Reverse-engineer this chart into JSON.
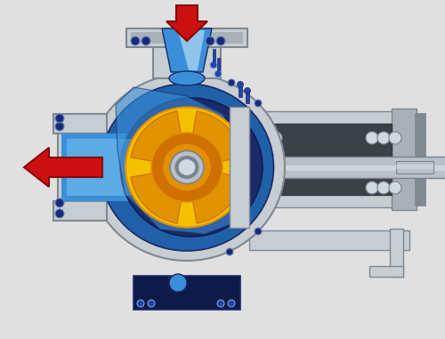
{
  "bg_color": "#e0e0e0",
  "casing_outer": "#aab0b8",
  "casing_mid": "#c8cdd2",
  "casing_dark": "#808890",
  "casing_inner": "#9aa5af",
  "blue_bright": "#3a8fd8",
  "blue_mid": "#2060a8",
  "blue_dark": "#1a2a6a",
  "blue_deep": "#0d1a4a",
  "impeller_yellow": "#f5c000",
  "impeller_gold": "#e09000",
  "impeller_orange": "#d07000",
  "shaft_silver": "#b8c0c8",
  "shaft_light": "#d8dfe5",
  "shaft_dark": "#7a8290",
  "bearing_dark": "#505860",
  "bearing_body": "#3a4248",
  "silver_light": "#d0d8e0",
  "silver_mid": "#a8b4bc",
  "arrow_red": "#cc1010",
  "arrow_dark": "#880808",
  "highlight_blue": "#80c8f0",
  "highlight_white": "#c8e8f8",
  "bolt_blue": "#1a2a7a",
  "bolt_bright": "#2244aa",
  "fig_width": 5.0,
  "fig_height": 3.81
}
